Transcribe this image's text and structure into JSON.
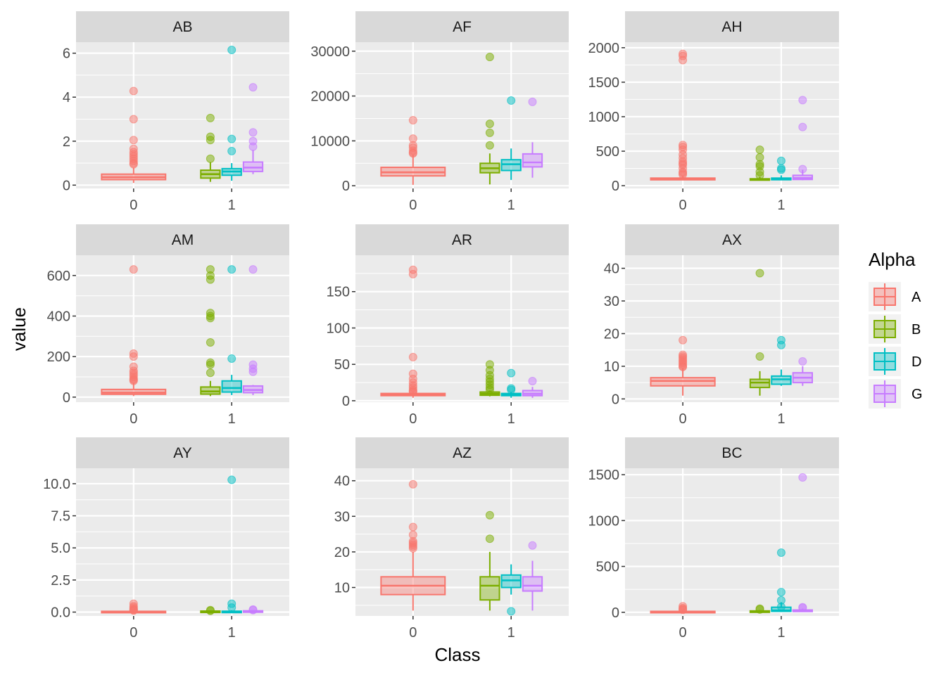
{
  "chart_data": {
    "type": "boxplot",
    "facet_by": "variable",
    "xlabel": "Class",
    "ylabel": "value",
    "categories": [
      "0",
      "1"
    ],
    "legend": {
      "title": "Alpha",
      "placement": "right",
      "entries": [
        {
          "label": "A",
          "color": "#F8766D"
        },
        {
          "label": "B",
          "color": "#7CAE00"
        },
        {
          "label": "D",
          "color": "#00BFC4"
        },
        {
          "label": "G",
          "color": "#C77CFF"
        }
      ]
    },
    "grid": true,
    "panels": [
      {
        "title": "AB",
        "ylim": [
          -0.15,
          6.5
        ],
        "yticks": [
          0,
          2,
          4,
          6
        ],
        "ytick_labels": [
          "0",
          "2",
          "4",
          "6"
        ],
        "boxes": [
          {
            "class": "0",
            "group": "A",
            "lower": 0.1,
            "q1": 0.25,
            "median": 0.36,
            "q3": 0.5,
            "upper": 0.8,
            "outliers": [
              4.28,
              3.0,
              2.05,
              1.65,
              1.5,
              1.4,
              1.3,
              1.2,
              1.1,
              1.0,
              0.95
            ]
          },
          {
            "class": "1",
            "group": "B",
            "lower": 0.15,
            "q1": 0.32,
            "median": 0.5,
            "q3": 0.68,
            "upper": 1.05,
            "outliers": [
              3.05,
              2.2,
              2.05,
              1.2
            ]
          },
          {
            "class": "1",
            "group": "D",
            "lower": 0.2,
            "q1": 0.45,
            "median": 0.62,
            "q3": 0.75,
            "upper": 1.0,
            "outliers": [
              6.15,
              2.1,
              1.55
            ]
          },
          {
            "class": "1",
            "group": "G",
            "lower": 0.5,
            "q1": 0.62,
            "median": 0.8,
            "q3": 1.05,
            "upper": 1.6,
            "outliers": [
              4.45,
              2.4,
              2.0,
              1.75
            ]
          }
        ]
      },
      {
        "title": "AF",
        "ylim": [
          -600,
          32000
        ],
        "yticks": [
          0,
          10000,
          20000,
          30000
        ],
        "ytick_labels": [
          "0",
          "10000",
          "20000",
          "30000"
        ],
        "boxes": [
          {
            "class": "0",
            "group": "A",
            "lower": 200,
            "q1": 2200,
            "median": 3000,
            "q3": 4100,
            "upper": 6900,
            "outliers": [
              14600,
              10500,
              9000,
              8500,
              7800,
              7400,
              7200
            ]
          },
          {
            "class": "1",
            "group": "B",
            "lower": 300,
            "q1": 2900,
            "median": 3900,
            "q3": 5000,
            "upper": 7200,
            "outliers": [
              28700,
              13800,
              11800,
              9000
            ]
          },
          {
            "class": "1",
            "group": "D",
            "lower": 1300,
            "q1": 3400,
            "median": 4800,
            "q3": 5800,
            "upper": 8300,
            "outliers": [
              19000
            ]
          },
          {
            "class": "1",
            "group": "G",
            "lower": 1800,
            "q1": 4200,
            "median": 5200,
            "q3": 7100,
            "upper": 9700,
            "outliers": [
              18700
            ]
          }
        ]
      },
      {
        "title": "AH",
        "ylim": [
          -40,
          2080
        ],
        "yticks": [
          0,
          500,
          1000,
          1500,
          2000
        ],
        "ytick_labels": [
          "0",
          "500",
          "1000",
          "1500",
          "2000"
        ],
        "boxes": [
          {
            "class": "0",
            "group": "A",
            "lower": 80,
            "q1": 85,
            "median": 92,
            "q3": 110,
            "upper": 140,
            "outliers": [
              1910,
              1880,
              1820,
              590,
              560,
              520,
              450,
              400,
              350,
              320,
              300,
              250,
              200,
              180,
              160
            ]
          },
          {
            "class": "1",
            "group": "B",
            "lower": 75,
            "q1": 80,
            "median": 88,
            "q3": 100,
            "upper": 130,
            "outliers": [
              520,
              410,
              310,
              280,
              200,
              150
            ]
          },
          {
            "class": "1",
            "group": "D",
            "lower": 80,
            "q1": 86,
            "median": 95,
            "q3": 110,
            "upper": 150,
            "outliers": [
              360,
              250,
              230
            ]
          },
          {
            "class": "1",
            "group": "G",
            "lower": 80,
            "q1": 90,
            "median": 110,
            "q3": 150,
            "upper": 230,
            "outliers": [
              1240,
              850,
              240
            ]
          }
        ]
      },
      {
        "title": "AM",
        "ylim": [
          -25,
          700
        ],
        "yticks": [
          0,
          200,
          400,
          600
        ],
        "ytick_labels": [
          "0",
          "200",
          "400",
          "600"
        ],
        "boxes": [
          {
            "class": "0",
            "group": "A",
            "lower": 5,
            "q1": 14,
            "median": 22,
            "q3": 38,
            "upper": 70,
            "outliers": [
              630,
              215,
              200,
              150,
              130,
              120,
              110,
              100,
              90,
              85,
              80
            ]
          },
          {
            "class": "1",
            "group": "B",
            "lower": 5,
            "q1": 15,
            "median": 28,
            "q3": 50,
            "upper": 80,
            "outliers": [
              630,
              600,
              580,
              415,
              400,
              390,
              270,
              170,
              160,
              120
            ]
          },
          {
            "class": "1",
            "group": "D",
            "lower": 10,
            "q1": 25,
            "median": 45,
            "q3": 80,
            "upper": 110,
            "outliers": [
              630,
              190
            ]
          },
          {
            "class": "1",
            "group": "G",
            "lower": 10,
            "q1": 22,
            "median": 35,
            "q3": 55,
            "upper": 60,
            "outliers": [
              630,
              160,
              140,
              125
            ]
          }
        ]
      },
      {
        "title": "AR",
        "ylim": [
          -2,
          200
        ],
        "yticks": [
          0,
          50,
          100,
          150
        ],
        "ytick_labels": [
          "0",
          "50",
          "100",
          "150"
        ],
        "boxes": [
          {
            "class": "0",
            "group": "A",
            "lower": 4,
            "q1": 7,
            "median": 8.5,
            "q3": 10,
            "upper": 12,
            "outliers": [
              180,
              174,
              60,
              37,
              30,
              25,
              21,
              18,
              15,
              13,
              12.5
            ]
          },
          {
            "class": "1",
            "group": "B",
            "lower": 6,
            "q1": 7.5,
            "median": 9.5,
            "q3": 12,
            "upper": 14,
            "outliers": [
              50,
              42,
              35,
              30,
              26,
              22,
              18,
              15
            ]
          },
          {
            "class": "1",
            "group": "D",
            "lower": 4,
            "q1": 7,
            "median": 8.5,
            "q3": 10,
            "upper": 12,
            "outliers": [
              38,
              17,
              15
            ]
          },
          {
            "class": "1",
            "group": "G",
            "lower": 4,
            "q1": 7,
            "median": 9.5,
            "q3": 14,
            "upper": 19,
            "outliers": [
              27
            ]
          }
        ]
      },
      {
        "title": "AX",
        "ylim": [
          -1,
          44
        ],
        "yticks": [
          0,
          10,
          20,
          30,
          40
        ],
        "ytick_labels": [
          "0",
          "10",
          "20",
          "30",
          "40"
        ],
        "boxes": [
          {
            "class": "0",
            "group": "A",
            "lower": 1,
            "q1": 4,
            "median": 5.5,
            "q3": 6.5,
            "upper": 9.5,
            "outliers": [
              18,
              13.5,
              13,
              12.5,
              12,
              11.5,
              11,
              10.5,
              10,
              9.8
            ]
          },
          {
            "class": "1",
            "group": "B",
            "lower": 1,
            "q1": 3.5,
            "median": 5,
            "q3": 6,
            "upper": 8.5,
            "outliers": [
              38.5,
              13
            ]
          },
          {
            "class": "1",
            "group": "D",
            "lower": 4,
            "q1": 4.5,
            "median": 6,
            "q3": 7,
            "upper": 9,
            "outliers": [
              18,
              16.5
            ]
          },
          {
            "class": "1",
            "group": "G",
            "lower": 4,
            "q1": 5,
            "median": 6.5,
            "q3": 8,
            "upper": 10,
            "outliers": [
              11.5
            ]
          }
        ]
      },
      {
        "title": "AY",
        "ylim": [
          -0.3,
          11.2
        ],
        "yticks": [
          0,
          2.5,
          5,
          7.5,
          10
        ],
        "ytick_labels": [
          "0.0",
          "2.5",
          "5.0",
          "7.5",
          "10.0"
        ],
        "boxes": [
          {
            "class": "0",
            "group": "A",
            "lower": 0.02,
            "q1": 0.03,
            "median": 0.04,
            "q3": 0.06,
            "upper": 0.09,
            "outliers": [
              0.65,
              0.45,
              0.35,
              0.25,
              0.2,
              0.15,
              0.12
            ]
          },
          {
            "class": "1",
            "group": "B",
            "lower": 0.02,
            "q1": 0.03,
            "median": 0.05,
            "q3": 0.08,
            "upper": 0.12,
            "outliers": [
              0.15,
              0.1
            ]
          },
          {
            "class": "1",
            "group": "D",
            "lower": 0.02,
            "q1": 0.03,
            "median": 0.04,
            "q3": 0.07,
            "upper": 0.15,
            "outliers": [
              10.3,
              0.65,
              0.35
            ]
          },
          {
            "class": "1",
            "group": "G",
            "lower": 0.02,
            "q1": 0.04,
            "median": 0.06,
            "q3": 0.1,
            "upper": 0.15,
            "outliers": [
              0.2,
              0.15
            ]
          }
        ]
      },
      {
        "title": "AZ",
        "ylim": [
          2,
          43.5
        ],
        "yticks": [
          10,
          20,
          30,
          40
        ],
        "ytick_labels": [
          "10",
          "20",
          "30",
          "40"
        ],
        "boxes": [
          {
            "class": "0",
            "group": "A",
            "lower": 3.5,
            "q1": 8,
            "median": 10.5,
            "q3": 13,
            "upper": 20,
            "outliers": [
              39,
              27,
              24.8,
              23,
              22.5,
              22,
              21.5,
              21
            ]
          },
          {
            "class": "1",
            "group": "B",
            "lower": 3.5,
            "q1": 6.5,
            "median": 10.5,
            "q3": 13,
            "upper": 20,
            "outliers": [
              30.3,
              23.7
            ]
          },
          {
            "class": "1",
            "group": "D",
            "lower": 8,
            "q1": 10,
            "median": 12,
            "q3": 13.5,
            "upper": 16.5,
            "outliers": [
              3.3
            ]
          },
          {
            "class": "1",
            "group": "G",
            "lower": 3.5,
            "q1": 9,
            "median": 10.5,
            "q3": 13,
            "upper": 17.5,
            "outliers": [
              21.8
            ]
          }
        ]
      },
      {
        "title": "BC",
        "ylim": [
          -40,
          1570
        ],
        "yticks": [
          0,
          500,
          1000,
          1500
        ],
        "ytick_labels": [
          "0",
          "500",
          "1000",
          "1500"
        ],
        "boxes": [
          {
            "class": "0",
            "group": "A",
            "lower": 2,
            "q1": 4,
            "median": 6,
            "q3": 10,
            "upper": 20,
            "outliers": [
              65,
              45,
              35,
              25
            ]
          },
          {
            "class": "1",
            "group": "B",
            "lower": 2,
            "q1": 5,
            "median": 8,
            "q3": 15,
            "upper": 25,
            "outliers": [
              40,
              30
            ]
          },
          {
            "class": "1",
            "group": "D",
            "lower": 3,
            "q1": 10,
            "median": 20,
            "q3": 55,
            "upper": 110,
            "outliers": [
              650,
              220,
              130,
              60
            ]
          },
          {
            "class": "1",
            "group": "G",
            "lower": 3,
            "q1": 8,
            "median": 14,
            "q3": 25,
            "upper": 40,
            "outliers": [
              1470,
              55,
              50
            ]
          }
        ]
      }
    ]
  }
}
